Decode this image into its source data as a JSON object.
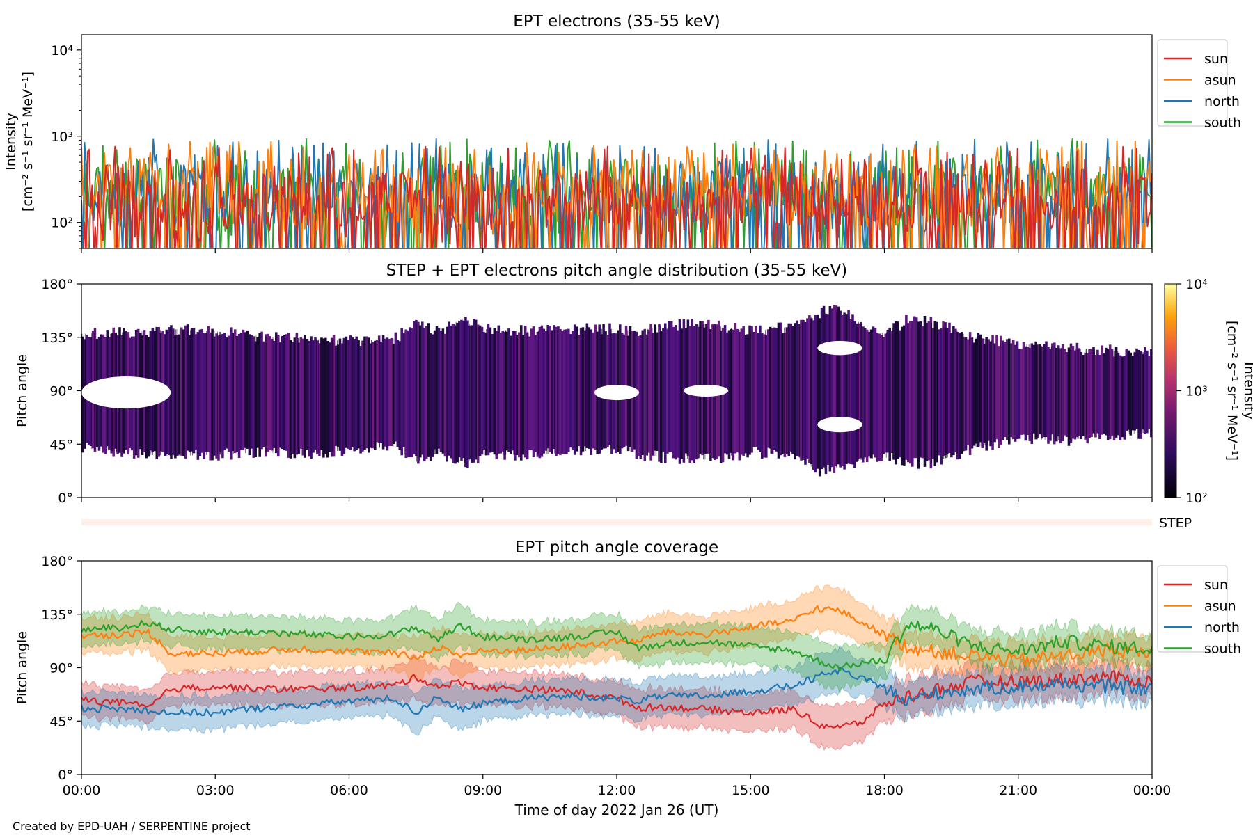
{
  "credit": "Created by EPD-UAH / SERPENTINE project",
  "x_axis": {
    "label": "Time of day 2022 Jan 26 (UT)",
    "range_hours": [
      0,
      24
    ],
    "ticks": [
      "00:00",
      "03:00",
      "06:00",
      "09:00",
      "12:00",
      "15:00",
      "18:00",
      "21:00",
      "00:00"
    ]
  },
  "colors": {
    "sun": "#d62728",
    "asun": "#ff7f0e",
    "north": "#1f77b4",
    "south": "#2ca02c",
    "step_bar": "#fdf0eb"
  },
  "step_label": "STEP",
  "chart_data": [
    {
      "type": "line",
      "title": "EPT electrons (35-55 keV)",
      "ylabel": "Intensity",
      "ylabel_units": "[cm⁻² s⁻¹ sr⁻¹ MeV⁻¹]",
      "yscale": "log",
      "ylim": [
        50,
        15000
      ],
      "ytick_labels": [
        "10²",
        "10³",
        "10⁴"
      ],
      "ytick_values": [
        100,
        1000,
        10000
      ],
      "legend_position": "outside-right-top",
      "series": [
        {
          "name": "south",
          "typical_range": [
            60,
            850
          ]
        },
        {
          "name": "north",
          "typical_range": [
            60,
            850
          ]
        },
        {
          "name": "asun",
          "typical_range": [
            60,
            800
          ]
        },
        {
          "name": "sun",
          "typical_range": [
            50,
            700
          ]
        }
      ],
      "legend_order": [
        "sun",
        "asun",
        "north",
        "south"
      ]
    },
    {
      "type": "heatmap",
      "title": "STEP + EPT electrons pitch angle distribution (35-55 keV)",
      "ylabel": "Pitch angle",
      "ylim": [
        0,
        180
      ],
      "ytick_labels": [
        "0°",
        "45°",
        "90°",
        "135°",
        "180°"
      ],
      "colorbar": {
        "label": "Intensity",
        "units": "[cm⁻² s⁻¹ sr⁻¹ MeV⁻¹]",
        "scale": "log",
        "range": [
          100,
          10000
        ],
        "tick_labels": [
          "10²",
          "10³",
          "10⁴"
        ]
      },
      "coverage_envelope": {
        "hours": [
          0,
          1.5,
          2,
          3,
          4,
          5,
          6,
          7,
          7.5,
          8,
          8.5,
          9,
          10,
          11,
          12,
          12.5,
          13,
          14,
          15,
          16,
          16.5,
          17,
          17.5,
          18,
          18.5,
          19,
          20,
          21,
          22,
          23,
          24
        ],
        "lower": [
          42,
          36,
          35,
          36,
          38,
          37,
          40,
          43,
          30,
          38,
          28,
          36,
          36,
          38,
          42,
          36,
          34,
          32,
          38,
          36,
          22,
          26,
          32,
          34,
          30,
          28,
          42,
          50,
          48,
          52,
          55
        ],
        "upper": [
          138,
          140,
          142,
          140,
          136,
          134,
          132,
          134,
          146,
          140,
          150,
          142,
          140,
          142,
          142,
          140,
          145,
          146,
          140,
          144,
          156,
          158,
          146,
          138,
          150,
          148,
          135,
          130,
          126,
          124,
          122
        ]
      },
      "gap_regions": [
        {
          "hours": [
            0,
            2
          ],
          "pitch": [
            75,
            102
          ]
        },
        {
          "hours": [
            11.5,
            12.5
          ],
          "pitch": [
            82,
            95
          ]
        },
        {
          "hours": [
            13.5,
            14.5
          ],
          "pitch": [
            85,
            95
          ]
        },
        {
          "hours": [
            16.5,
            17.5
          ],
          "pitch": [
            120,
            132
          ]
        },
        {
          "hours": [
            16.5,
            17.5
          ],
          "pitch": [
            55,
            68
          ]
        }
      ]
    },
    {
      "type": "area",
      "title": "EPT pitch angle coverage",
      "ylabel": "Pitch angle",
      "ylim": [
        0,
        180
      ],
      "ytick_labels": [
        "0°",
        "45°",
        "90°",
        "135°",
        "180°"
      ],
      "legend_position": "outside-right-top",
      "x": [
        0,
        1,
        1.5,
        2,
        3,
        4,
        5,
        6,
        7,
        7.5,
        8,
        8.5,
        9,
        10,
        11,
        12,
        12.5,
        13,
        14,
        15,
        16,
        16.5,
        17,
        17.5,
        18,
        18.5,
        19,
        20,
        21,
        22,
        23,
        24
      ],
      "series": [
        {
          "name": "sun",
          "values": [
            63,
            60,
            56,
            72,
            74,
            72,
            72,
            73,
            75,
            82,
            74,
            78,
            73,
            72,
            70,
            64,
            56,
            57,
            55,
            52,
            55,
            42,
            40,
            44,
            60,
            65,
            70,
            78,
            78,
            80,
            82,
            78
          ],
          "half_width": [
            14,
            14,
            14,
            14,
            14,
            14,
            14,
            14,
            14,
            18,
            16,
            18,
            14,
            14,
            14,
            14,
            16,
            16,
            16,
            16,
            16,
            18,
            18,
            16,
            15,
            15,
            15,
            14,
            14,
            14,
            13,
            13
          ]
        },
        {
          "name": "asun",
          "values": [
            117,
            118,
            120,
            102,
            102,
            104,
            106,
            104,
            102,
            98,
            108,
            100,
            104,
            105,
            108,
            112,
            112,
            120,
            118,
            124,
            130,
            140,
            138,
            128,
            118,
            108,
            104,
            100,
            96,
            100,
            105,
            102
          ],
          "half_width": [
            15,
            15,
            15,
            15,
            14,
            14,
            14,
            14,
            14,
            18,
            16,
            18,
            14,
            14,
            15,
            15,
            16,
            16,
            16,
            16,
            16,
            18,
            18,
            16,
            15,
            15,
            15,
            14,
            14,
            14,
            13,
            13
          ]
        },
        {
          "name": "north",
          "values": [
            56,
            55,
            54,
            52,
            52,
            56,
            58,
            62,
            64,
            52,
            66,
            54,
            60,
            64,
            66,
            64,
            62,
            66,
            66,
            70,
            75,
            82,
            88,
            80,
            74,
            60,
            68,
            72,
            74,
            76,
            74,
            72
          ],
          "half_width": [
            14,
            14,
            14,
            14,
            14,
            14,
            14,
            14,
            14,
            18,
            16,
            18,
            14,
            14,
            15,
            15,
            16,
            16,
            16,
            16,
            16,
            18,
            18,
            16,
            15,
            15,
            15,
            14,
            14,
            14,
            13,
            13
          ]
        },
        {
          "name": "south",
          "values": [
            122,
            124,
            128,
            122,
            120,
            120,
            118,
            116,
            118,
            124,
            114,
            126,
            116,
            114,
            116,
            120,
            106,
            110,
            112,
            108,
            104,
            96,
            90,
            94,
            96,
            126,
            124,
            108,
            104,
            112,
            108,
            106
          ],
          "half_width": [
            14,
            14,
            14,
            14,
            14,
            14,
            14,
            14,
            14,
            18,
            16,
            18,
            14,
            14,
            15,
            15,
            16,
            16,
            16,
            16,
            16,
            18,
            18,
            16,
            15,
            15,
            15,
            14,
            14,
            14,
            13,
            13
          ]
        }
      ],
      "legend_order": [
        "sun",
        "asun",
        "north",
        "south"
      ]
    }
  ]
}
